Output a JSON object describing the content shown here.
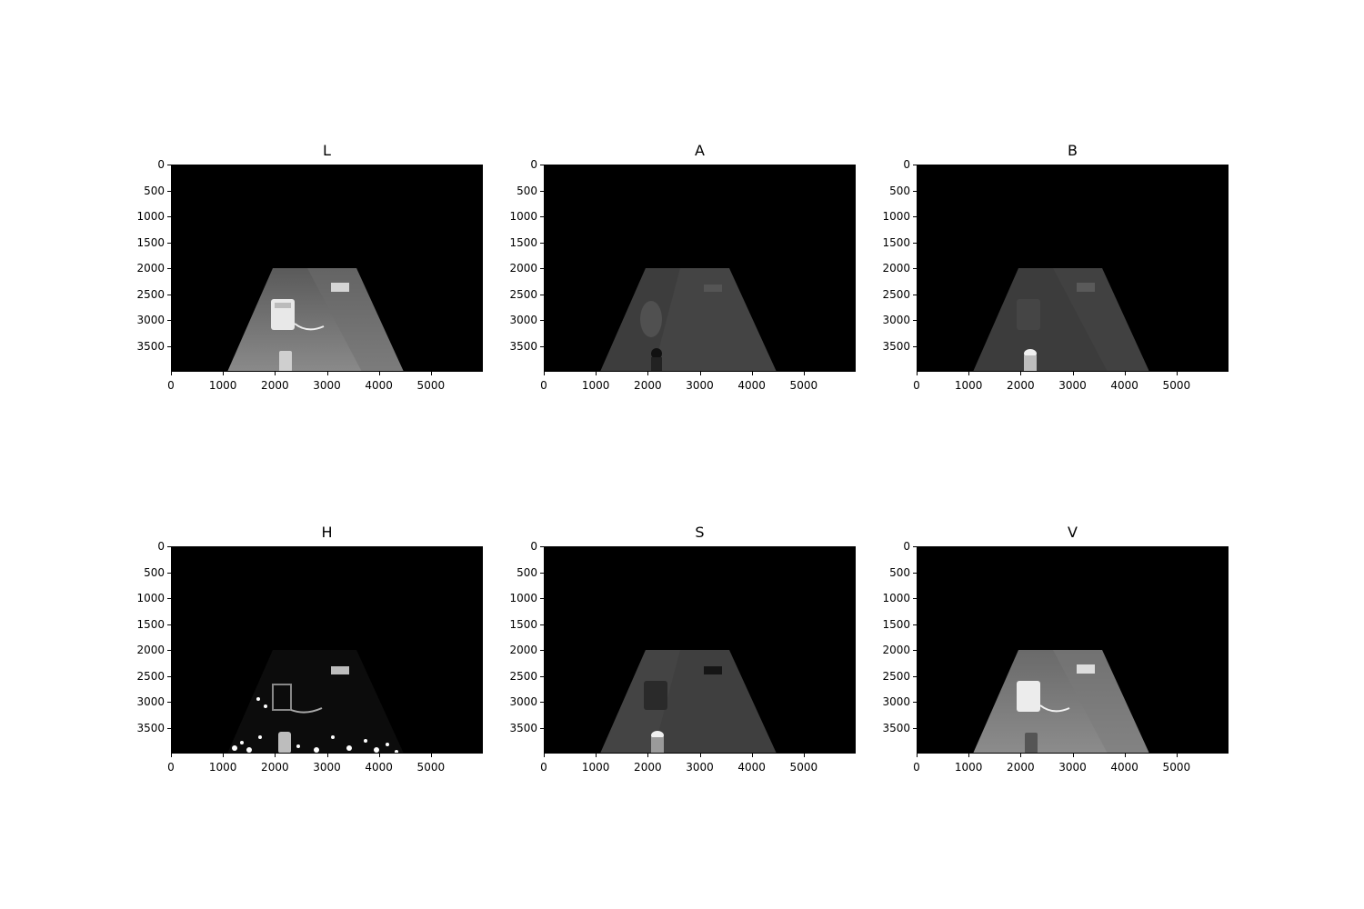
{
  "panels": [
    {
      "title": "L"
    },
    {
      "title": "A"
    },
    {
      "title": "B"
    },
    {
      "title": "H"
    },
    {
      "title": "S"
    },
    {
      "title": "V"
    }
  ],
  "axes": {
    "x_ticks": [
      "0",
      "1000",
      "2000",
      "3000",
      "4000",
      "5000"
    ],
    "y_ticks": [
      "0",
      "500",
      "1000",
      "1500",
      "2000",
      "2500",
      "3000",
      "3500"
    ]
  }
}
